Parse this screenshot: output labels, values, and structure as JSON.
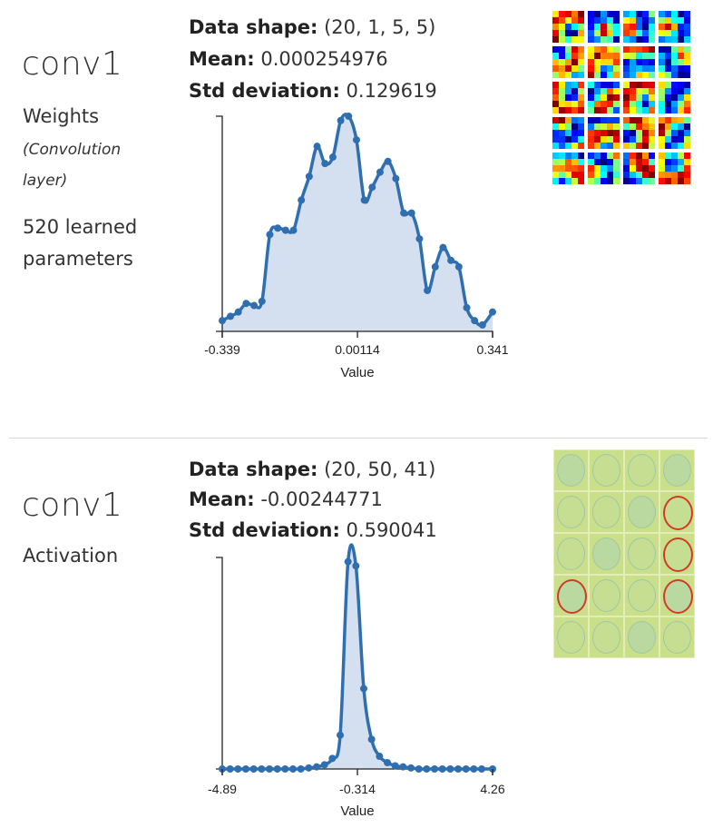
{
  "colors": {
    "line": "#2f6fb0",
    "fill": "#d4dff0",
    "axis": "#222222"
  },
  "layers": [
    {
      "name": "conv1",
      "kind": "Weights",
      "kind_detail": "(Convolution layer)",
      "params_line1": "520 learned",
      "params_line2": "parameters",
      "stats": {
        "shape_label": "Data shape:",
        "shape_value": "(20, 1, 5, 5)",
        "mean_label": "Mean:",
        "mean_value": "0.000254976",
        "std_label": "Std deviation:",
        "std_value": "0.129619"
      },
      "thumbnails": {
        "rows": 5,
        "cols": 4,
        "kind": "5x5 weight filters"
      }
    },
    {
      "name": "conv1",
      "kind": "Activation",
      "stats": {
        "shape_label": "Data shape:",
        "shape_value": "(20, 50, 41)",
        "mean_label": "Mean:",
        "mean_value": "-0.00244771",
        "std_label": "Std deviation:",
        "std_value": "0.590041"
      },
      "thumbnails": {
        "rows": 5,
        "cols": 4,
        "kind": "activation maps"
      }
    }
  ],
  "chart_data": [
    {
      "type": "area",
      "title": "",
      "xlabel": "Value",
      "ylabel": "",
      "xlim": [
        -0.339,
        0.341
      ],
      "ylim": [
        0,
        1
      ],
      "xticks": [
        "-0.339",
        "0.00114",
        "0.341"
      ],
      "x": [
        -0.339,
        -0.3184,
        -0.2986,
        -0.2788,
        -0.2589,
        -0.2391,
        -0.2193,
        -0.1995,
        -0.1797,
        -0.1599,
        -0.1401,
        -0.1203,
        -0.1004,
        -0.0806,
        -0.0608,
        -0.041,
        -0.0212,
        -0.0014,
        0.0184,
        0.0382,
        0.058,
        0.0778,
        0.0977,
        0.1175,
        0.1373,
        0.1571,
        0.1769,
        0.1967,
        0.2165,
        0.2363,
        0.2562,
        0.276,
        0.2958,
        0.3156,
        0.341
      ],
      "y": [
        0.05,
        0.07,
        0.09,
        0.13,
        0.12,
        0.14,
        0.45,
        0.48,
        0.47,
        0.47,
        0.61,
        0.72,
        0.86,
        0.78,
        0.81,
        0.98,
        1.0,
        0.89,
        0.61,
        0.67,
        0.74,
        0.79,
        0.71,
        0.55,
        0.55,
        0.43,
        0.19,
        0.3,
        0.39,
        0.33,
        0.3,
        0.11,
        0.05,
        0.03,
        0.09
      ]
    },
    {
      "type": "area",
      "title": "",
      "xlabel": "Value",
      "ylabel": "",
      "xlim": [
        -4.89,
        4.26
      ],
      "ylim": [
        0,
        1
      ],
      "xticks": [
        "-4.89",
        "-0.314",
        "4.26"
      ],
      "x": [
        -4.89,
        -4.624,
        -4.358,
        -4.092,
        -3.825,
        -3.559,
        -3.293,
        -3.027,
        -2.761,
        -2.495,
        -2.229,
        -1.962,
        -1.696,
        -1.43,
        -1.164,
        -0.898,
        -0.632,
        -0.366,
        -0.1,
        0.166,
        0.433,
        0.699,
        0.965,
        1.231,
        1.497,
        1.763,
        2.029,
        2.296,
        2.562,
        2.828,
        3.094,
        3.36,
        3.626,
        3.892,
        4.26
      ],
      "y": [
        0.0,
        0.0,
        0.0,
        0.0,
        0.0,
        0.0,
        0.0,
        0.0,
        0.0,
        0.0,
        0.0,
        0.005,
        0.01,
        0.02,
        0.05,
        0.16,
        0.98,
        0.96,
        0.38,
        0.14,
        0.06,
        0.03,
        0.015,
        0.01,
        0.005,
        0.0,
        0.0,
        0.0,
        0.0,
        0.0,
        0.0,
        0.0,
        0.0,
        0.0,
        0.0
      ]
    }
  ]
}
